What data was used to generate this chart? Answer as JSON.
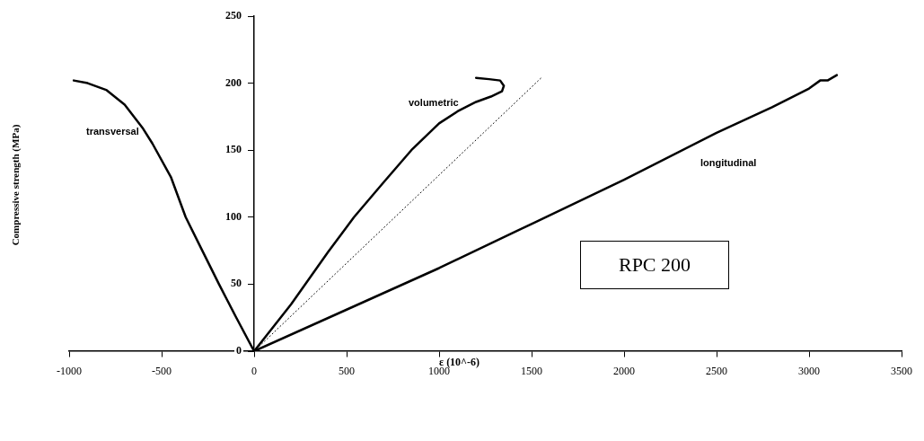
{
  "chart_data": {
    "type": "line",
    "xlabel": "ε  (10^-6)",
    "ylabel": "Compressive strength  (MPa)",
    "xlim": [
      -1000,
      3500
    ],
    "xticks": [
      -1000,
      -500,
      0,
      500,
      1000,
      1500,
      2000,
      2500,
      3000,
      3500
    ],
    "ylim": [
      0,
      250
    ],
    "yticks": [
      0,
      50,
      100,
      150,
      200,
      250
    ],
    "grid": false,
    "legend": false,
    "marker": "none",
    "series": [
      {
        "name": "transversal",
        "color": "#000000",
        "x": [
          -975,
          -900,
          -800,
          -700,
          -600,
          -550,
          -450,
          -370,
          -280,
          -190,
          -100,
          0
        ],
        "values": [
          202,
          200,
          195,
          184,
          166,
          155,
          130,
          100,
          75,
          50,
          26,
          0
        ]
      },
      {
        "name": "volumetric",
        "color": "#000000",
        "x": [
          0,
          200,
          400,
          540,
          700,
          850,
          1000,
          1100,
          1200,
          1280,
          1340,
          1350,
          1330,
          1270,
          1200
        ],
        "values": [
          0,
          35,
          74,
          100,
          126,
          150,
          170,
          179,
          186,
          190,
          194,
          198,
          202,
          203,
          204
        ]
      },
      {
        "name": "longitudinal",
        "color": "#000000",
        "x": [
          0,
          500,
          1000,
          1500,
          2000,
          2500,
          2800,
          3000,
          3060,
          3100,
          3150
        ],
        "values": [
          0,
          31,
          62,
          95,
          128,
          163,
          182,
          196,
          202,
          202,
          206
        ]
      },
      {
        "color": "#000000",
        "line_style": "dotted",
        "x": [
          0,
          1560
        ],
        "values": [
          0,
          205
        ]
      }
    ],
    "annotations": [
      "RPC 200"
    ]
  }
}
